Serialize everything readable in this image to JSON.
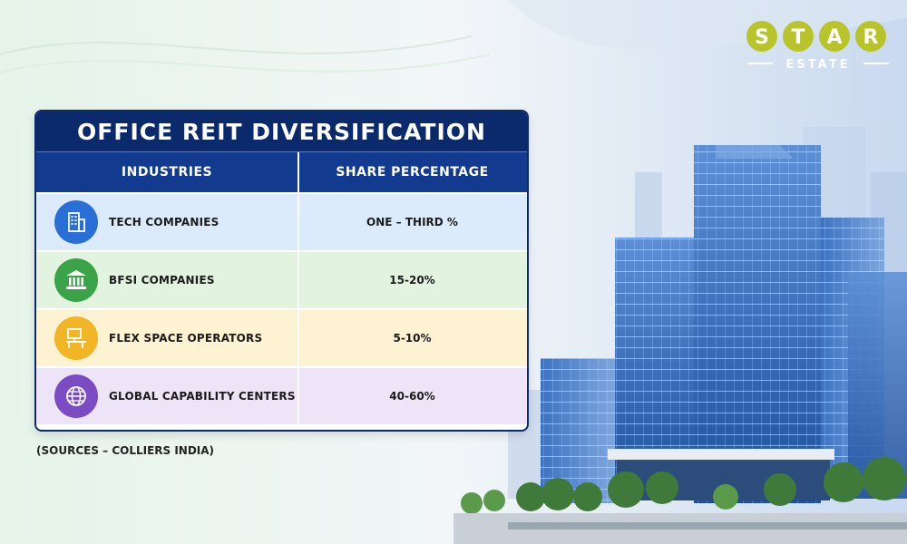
{
  "brand": {
    "top": "STAR",
    "bottom": "ESTATE"
  },
  "table": {
    "title": "OFFICE REIT DIVERSIFICATION",
    "headers": [
      "INDUSTRIES",
      "SHARE PERCENTAGE"
    ],
    "rows": [
      {
        "industry": "TECH COMPANIES",
        "share": "ONE – THIRD %",
        "icon": "building-icon",
        "color": "#2a6fd6",
        "bg": "#dcebfb"
      },
      {
        "industry": "BFSI COMPANIES",
        "share": "15-20%",
        "icon": "bank-icon",
        "color": "#3aa348",
        "bg": "#e2f3df"
      },
      {
        "industry": "FLEX SPACE OPERATORS",
        "share": "5-10%",
        "icon": "desk-icon",
        "color": "#f2b526",
        "bg": "#fdf3d3"
      },
      {
        "industry": "GLOBAL CAPABILITY CENTERS",
        "share": "40-60%",
        "icon": "globe-icon",
        "color": "#7b4bc4",
        "bg": "#ede4f7"
      }
    ]
  },
  "source": "(SOURCES – COLLIERS INDIA)"
}
